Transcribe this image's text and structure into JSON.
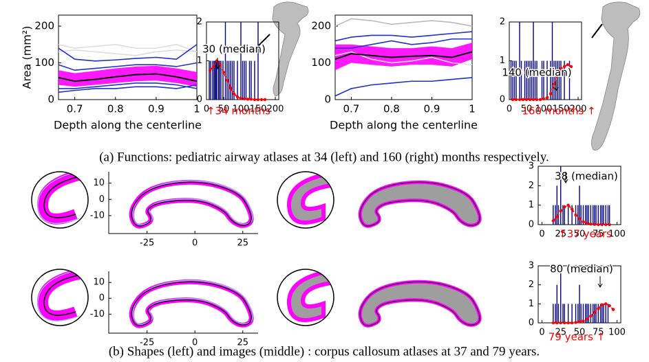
{
  "caption_a": "(a) Functions: pediatric airway atlases at 34 (left) and 160 (right) months respectively.",
  "caption_b": "(b) Shapes (left) and images (middle) : corpus callosum atlases at 37 and 79 years.",
  "chart_data": [
    {
      "type": "line",
      "ylabel": "Area (mm²)",
      "xlabel": "Depth along the centerline",
      "xlim": [
        0.66,
        1
      ],
      "xticks": [
        0.7,
        0.8,
        0.9,
        1
      ],
      "ylim": [
        0,
        230
      ],
      "yticks": [
        0,
        100,
        200
      ],
      "x": [
        0.66,
        0.7,
        0.75,
        0.8,
        0.85,
        0.9,
        0.95,
        1
      ],
      "band": {
        "color": "#ff00ff",
        "upper": [
          80,
          72,
          78,
          85,
          90,
          92,
          85,
          75
        ],
        "lower": [
          40,
          35,
          40,
          45,
          50,
          52,
          45,
          35
        ]
      },
      "series": [
        {
          "color": "#dddddd",
          "values": [
            130,
            135,
            130,
            125,
            120,
            130,
            135,
            130
          ]
        },
        {
          "color": "#dddddd",
          "values": [
            150,
            140,
            145,
            150,
            140,
            140,
            150,
            130
          ]
        },
        {
          "color": "#1f2fd0",
          "values": [
            140,
            110,
            105,
            108,
            112,
            115,
            110,
            150
          ]
        },
        {
          "color": "#1f2fd0",
          "values": [
            95,
            80,
            85,
            90,
            95,
            95,
            90,
            100
          ]
        },
        {
          "color": "#1f2fd0",
          "values": [
            30,
            30,
            35,
            40,
            45,
            45,
            40,
            30
          ]
        },
        {
          "color": "#1f2fd0",
          "values": [
            20,
            25,
            30,
            30,
            35,
            35,
            30,
            40
          ]
        },
        {
          "color": "#000000",
          "values": [
            60,
            50,
            55,
            62,
            68,
            70,
            62,
            50
          ]
        }
      ]
    },
    {
      "type": "stem",
      "xlim": [
        0,
        210
      ],
      "xticks": [
        0,
        50,
        100,
        150,
        200
      ],
      "ylim": [
        0,
        2
      ],
      "yticks": [
        0,
        1,
        2
      ],
      "color": "#000080",
      "x": [
        8,
        12,
        18,
        22,
        25,
        28,
        30,
        35,
        38,
        42,
        48,
        55,
        60,
        65,
        70,
        75,
        80,
        90,
        100,
        105,
        110,
        115,
        125,
        130,
        140,
        150
      ],
      "values": [
        1,
        1,
        1,
        1,
        1,
        1,
        1,
        1,
        1,
        1,
        1,
        2,
        1,
        1,
        1,
        1,
        1,
        1,
        2,
        1,
        1,
        1,
        1,
        1,
        1,
        2
      ],
      "curve": {
        "color": "#ff0000",
        "x": [
          10,
          20,
          30,
          40,
          50,
          60,
          70,
          80,
          90,
          100,
          110,
          120,
          130,
          140,
          150,
          160,
          170
        ],
        "values": [
          0.75,
          0.85,
          1,
          0.9,
          0.7,
          0.5,
          0.3,
          0.15,
          0.07,
          0.03,
          0.02,
          0.01,
          0.01,
          0,
          0,
          0,
          0
        ]
      },
      "median_label": "30 (median)",
      "age_label": "↑34 months"
    },
    {
      "type": "line",
      "xlabel": "Depth along the centerline",
      "xlim": [
        0.66,
        1
      ],
      "xticks": [
        0.7,
        0.8,
        0.9,
        1
      ],
      "ylim": [
        0,
        230
      ],
      "yticks": [
        0,
        100,
        200
      ],
      "x": [
        0.66,
        0.7,
        0.75,
        0.8,
        0.85,
        0.9,
        0.95,
        1
      ],
      "band": {
        "color": "#ff00ff",
        "upper": [
          150,
          150,
          145,
          140,
          140,
          145,
          140,
          155
        ],
        "lower": [
          80,
          100,
          95,
          90,
          95,
          95,
          90,
          110
        ]
      },
      "series": [
        {
          "color": "#bbbbbb",
          "values": [
            200,
            220,
            215,
            205,
            210,
            215,
            210,
            200
          ]
        },
        {
          "color": "#dddddd",
          "values": [
            120,
            130,
            110,
            100,
            105,
            115,
            100,
            95
          ]
        },
        {
          "color": "#1f2fd0",
          "values": [
            160,
            170,
            175,
            175,
            170,
            175,
            180,
            185
          ]
        },
        {
          "color": "#1f2fd0",
          "values": [
            140,
            140,
            150,
            160,
            150,
            155,
            165,
            165
          ]
        },
        {
          "color": "#1f2fd0",
          "values": [
            10,
            30,
            40,
            45,
            50,
            50,
            55,
            60
          ]
        },
        {
          "color": "#000000",
          "values": [
            110,
            125,
            120,
            115,
            118,
            120,
            115,
            130
          ]
        }
      ]
    },
    {
      "type": "stem",
      "xlim": [
        0,
        210
      ],
      "xticks": [
        0,
        50,
        100,
        150,
        200
      ],
      "ylim": [
        0,
        2
      ],
      "yticks": [
        0,
        1,
        2
      ],
      "color": "#000080",
      "x": [
        5,
        10,
        15,
        20,
        30,
        35,
        45,
        50,
        55,
        60,
        65,
        70,
        75,
        80,
        95,
        100,
        110,
        120,
        125,
        130,
        135,
        140,
        145,
        150,
        160,
        175
      ],
      "values": [
        1,
        1,
        1,
        1,
        2,
        1,
        1,
        1,
        1,
        1,
        1,
        2,
        1,
        1,
        1,
        1,
        1,
        1,
        2,
        1,
        1,
        1,
        1,
        1,
        1,
        1
      ],
      "curve": {
        "color": "#ff0000",
        "x": [
          10,
          20,
          30,
          40,
          50,
          60,
          70,
          80,
          90,
          100,
          110,
          120,
          130,
          140,
          150,
          160,
          170,
          180
        ],
        "values": [
          0,
          0,
          0,
          0,
          0,
          0,
          0,
          0,
          0,
          0.02,
          0.05,
          0.15,
          0.4,
          0.7,
          0.8,
          0.85,
          0.9,
          0.85
        ]
      },
      "median_label": "140 (median)",
      "age_label": "160 months ↑"
    },
    {
      "type": "shape",
      "xlim": [
        -45,
        33
      ],
      "xticks": [
        -25,
        0,
        25
      ],
      "ylim": [
        -21,
        17
      ],
      "yticks": [
        -10,
        0,
        10
      ]
    },
    {
      "type": "stem",
      "xlim": [
        -5,
        105
      ],
      "xticks": [
        0,
        25,
        50,
        75,
        100
      ],
      "ylim": [
        0,
        3
      ],
      "yticks": [
        0,
        1,
        2,
        3
      ],
      "color": "#000080",
      "x": [
        15,
        18,
        20,
        22,
        25,
        28,
        30,
        35,
        40,
        45,
        48,
        50,
        52,
        55,
        58,
        60,
        62,
        65,
        68,
        70,
        72,
        75,
        78,
        80,
        82,
        85,
        88,
        90
      ],
      "values": [
        1,
        1,
        2,
        1,
        3,
        1,
        1,
        1,
        1,
        1,
        1,
        2,
        1,
        1,
        1,
        1,
        1,
        1,
        1,
        1,
        1,
        1,
        1,
        1,
        1,
        1,
        1,
        1
      ],
      "curve": {
        "color": "#ff0000",
        "x": [
          15,
          20,
          25,
          30,
          35,
          40,
          45,
          50,
          55,
          60,
          65,
          70,
          75,
          80,
          85,
          90
        ],
        "values": [
          0.2,
          0.4,
          0.7,
          0.9,
          1,
          0.8,
          0.5,
          0.3,
          0.15,
          0.07,
          0.03,
          0.01,
          0,
          0,
          0,
          0
        ]
      },
      "median_label": "38 (median)",
      "age_label": "↑37 years"
    },
    {
      "type": "shape",
      "xlim": [
        -45,
        33
      ],
      "xticks": [
        -25,
        0,
        25
      ],
      "ylim": [
        -22,
        17
      ],
      "yticks": [
        -10,
        0,
        10
      ]
    },
    {
      "type": "stem",
      "xlim": [
        -5,
        105
      ],
      "xticks": [
        0,
        25,
        50,
        75,
        100
      ],
      "ylim": [
        0,
        3
      ],
      "yticks": [
        0,
        1,
        2,
        3
      ],
      "color": "#000080",
      "x": [
        15,
        18,
        20,
        22,
        25,
        28,
        30,
        35,
        40,
        45,
        48,
        50,
        52,
        55,
        58,
        60,
        62,
        65,
        68,
        70,
        72,
        75,
        78,
        80,
        82,
        85,
        88
      ],
      "values": [
        1,
        1,
        2,
        1,
        3,
        1,
        1,
        1,
        1,
        1,
        1,
        2,
        1,
        1,
        1,
        1,
        1,
        1,
        1,
        1,
        1,
        1,
        1,
        1,
        1,
        1,
        1
      ],
      "curve": {
        "color": "#ff0000",
        "x": [
          15,
          20,
          25,
          30,
          35,
          40,
          45,
          50,
          55,
          60,
          65,
          70,
          75,
          80,
          85,
          90,
          95
        ],
        "values": [
          0,
          0,
          0,
          0,
          0,
          0,
          0.02,
          0.05,
          0.1,
          0.2,
          0.35,
          0.55,
          0.75,
          0.95,
          1,
          0.9,
          0.7
        ]
      },
      "median_label": "80 (median)",
      "age_label": "79 years ↑"
    }
  ]
}
